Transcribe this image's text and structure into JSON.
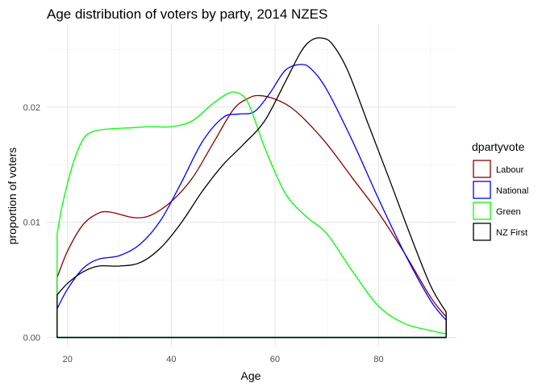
{
  "chart_data": {
    "type": "area",
    "title": "Age distribution of voters by party, 2014 NZES",
    "xlabel": "Age",
    "ylabel": "proportion of voters",
    "xlim": [
      16,
      95
    ],
    "ylim": [
      -0.0008,
      0.0272
    ],
    "x_ticks": [
      20,
      40,
      60,
      80
    ],
    "x_tick_labels": [
      "20",
      "40",
      "60",
      "80"
    ],
    "y_ticks": [
      0.0,
      0.01,
      0.02
    ],
    "y_tick_labels": [
      "0.00",
      "0.01",
      "0.02"
    ],
    "grid": true,
    "legend_placement": "right",
    "legend_title": "dpartyvote",
    "series": [
      {
        "name": "Labour",
        "color": "#8b0000",
        "x": [
          18,
          20,
          23,
          26,
          28,
          30,
          33,
          36,
          40,
          44,
          48,
          52,
          55,
          57,
          60,
          63,
          66,
          70,
          75,
          80,
          85,
          90,
          93
        ],
        "values": [
          0.0052,
          0.0075,
          0.0098,
          0.0108,
          0.0109,
          0.0107,
          0.0104,
          0.0106,
          0.0118,
          0.0138,
          0.0168,
          0.0198,
          0.0208,
          0.021,
          0.0207,
          0.02,
          0.0188,
          0.0168,
          0.0138,
          0.0108,
          0.0073,
          0.0035,
          0.0018
        ]
      },
      {
        "name": "National",
        "color": "#0000ff",
        "x": [
          18,
          20,
          23,
          26,
          30,
          34,
          38,
          42,
          46,
          50,
          53,
          56,
          59,
          62,
          65,
          67,
          70,
          75,
          80,
          85,
          90,
          93
        ],
        "values": [
          0.0025,
          0.0042,
          0.006,
          0.0068,
          0.0071,
          0.0081,
          0.0102,
          0.0135,
          0.017,
          0.0191,
          0.0194,
          0.0196,
          0.0212,
          0.0232,
          0.0237,
          0.0233,
          0.0215,
          0.017,
          0.012,
          0.0073,
          0.0032,
          0.0015
        ]
      },
      {
        "name": "Green",
        "color": "#00ff00",
        "x": [
          18,
          19,
          21,
          23,
          25,
          28,
          32,
          36,
          40,
          44,
          48,
          51,
          53,
          55,
          58,
          62,
          66,
          70,
          75,
          80,
          85,
          90,
          93
        ],
        "values": [
          0.009,
          0.0115,
          0.015,
          0.0172,
          0.0179,
          0.0181,
          0.0182,
          0.0183,
          0.0183,
          0.0188,
          0.0203,
          0.0212,
          0.0212,
          0.0202,
          0.0165,
          0.0125,
          0.0105,
          0.009,
          0.0057,
          0.0027,
          0.0012,
          0.0006,
          0.0003
        ]
      },
      {
        "name": "NZ First",
        "color": "#000000",
        "x": [
          18,
          20,
          23,
          26,
          30,
          34,
          38,
          42,
          46,
          50,
          54,
          58,
          62,
          65,
          67,
          69,
          71,
          74,
          78,
          82,
          86,
          90,
          93
        ],
        "values": [
          0.0037,
          0.0047,
          0.0057,
          0.0062,
          0.0062,
          0.0065,
          0.0078,
          0.01,
          0.0127,
          0.015,
          0.0168,
          0.0188,
          0.0222,
          0.0248,
          0.0258,
          0.026,
          0.0255,
          0.0232,
          0.0185,
          0.0138,
          0.009,
          0.0045,
          0.0022
        ]
      }
    ]
  }
}
